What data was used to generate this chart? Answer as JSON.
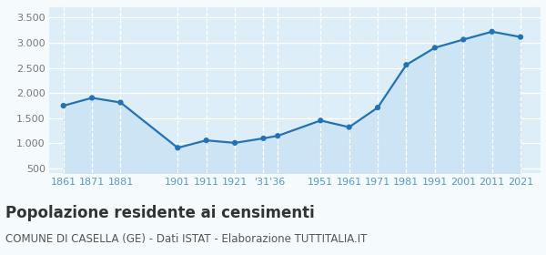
{
  "population": [
    1748,
    1904,
    1812,
    910,
    1058,
    1008,
    1098,
    1148,
    1453,
    1321,
    1711,
    2561,
    2902,
    3065,
    3222,
    3116
  ],
  "x_positions": [
    0,
    1,
    2,
    4,
    5,
    6,
    7,
    7.5,
    9,
    10,
    11,
    12,
    13,
    14,
    15,
    16
  ],
  "xtick_positions": [
    0,
    1,
    2,
    4,
    5,
    6,
    7.25,
    9,
    10,
    11,
    12,
    13,
    14,
    15,
    16
  ],
  "xtick_labels": [
    "1861",
    "1871",
    "1881",
    "1901",
    "1911",
    "1921",
    "'31'36",
    "1951",
    "1961",
    "1971",
    "1981",
    "1991",
    "2001",
    "2011",
    "2021"
  ],
  "ylim": [
    400,
    3700
  ],
  "yticks": [
    500,
    1000,
    1500,
    2000,
    2500,
    3000,
    3500
  ],
  "line_color": "#2272b6",
  "fill_color": "#cce4f4",
  "marker_color": "#2272b6",
  "bg_color": "#deeef8",
  "grid_color": "#ffffff",
  "axis_line_color": "#bbbbbb",
  "fig_bg_color": "#f5fafd",
  "title": "Popolazione residente ai censimenti",
  "subtitle": "COMUNE DI CASELLA (GE) - Dati ISTAT - Elaborazione TUTTITALIA.IT",
  "title_fontsize": 12,
  "subtitle_fontsize": 8.5,
  "tick_color": "#5599cc",
  "tick_fontsize": 8,
  "ytick_color": "#777777",
  "ytick_fontsize": 8
}
